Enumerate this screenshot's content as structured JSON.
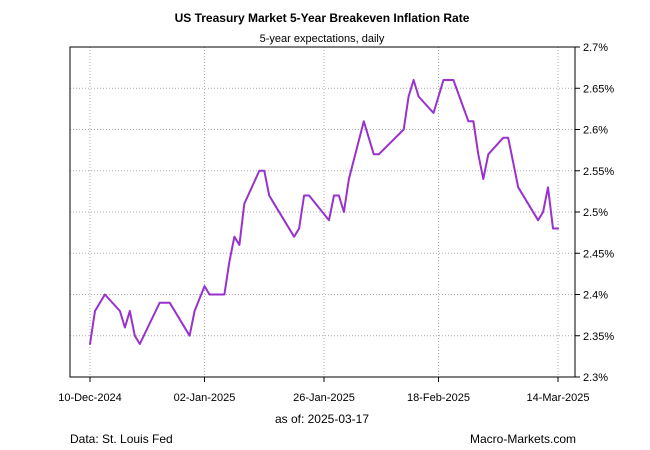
{
  "chart_data": {
    "type": "line",
    "title": "US Treasury Market 5-Year Breakeven Inflation Rate",
    "subtitle": "5-year expectations, daily",
    "xlabel": "",
    "ylabel": "",
    "ylim": [
      2.3,
      2.7
    ],
    "yticks": [
      2.3,
      2.35,
      2.4,
      2.45,
      2.5,
      2.55,
      2.6,
      2.65,
      2.7
    ],
    "ytick_labels": [
      "2.3%",
      "2.35%",
      "2.4%",
      "2.45%",
      "2.5%",
      "2.55%",
      "2.6%",
      "2.65%",
      "2.7%"
    ],
    "y_axis_side": "right",
    "grid": true,
    "x_day_range": [
      0,
      94
    ],
    "xticks": [
      {
        "day": 0,
        "label": "10-Dec-2024"
      },
      {
        "day": 23,
        "label": "02-Jan-2025"
      },
      {
        "day": 47,
        "label": "26-Jan-2025"
      },
      {
        "day": 70,
        "label": "18-Feb-2025"
      },
      {
        "day": 94,
        "label": "14-Mar-2025"
      }
    ],
    "series": [
      {
        "name": "5-Year Breakeven Inflation Rate",
        "color": "#9932CC",
        "x": [
          0,
          1,
          3,
          6,
          7,
          8,
          9,
          10,
          14,
          16,
          20,
          21,
          23,
          24,
          27,
          28,
          29,
          30,
          31,
          34,
          35,
          36,
          37,
          41,
          42,
          43,
          44,
          48,
          49,
          50,
          51,
          52,
          55,
          56,
          57,
          58,
          63,
          64,
          65,
          66,
          69,
          70,
          71,
          73,
          76,
          77,
          78,
          79,
          80,
          83,
          84,
          86,
          90,
          91,
          92,
          93,
          94
        ],
        "values": [
          2.34,
          2.38,
          2.4,
          2.38,
          2.36,
          2.38,
          2.35,
          2.34,
          2.39,
          2.39,
          2.35,
          2.38,
          2.41,
          2.4,
          2.4,
          2.44,
          2.47,
          2.46,
          2.51,
          2.55,
          2.55,
          2.52,
          2.51,
          2.47,
          2.48,
          2.52,
          2.52,
          2.49,
          2.52,
          2.52,
          2.5,
          2.54,
          2.61,
          2.59,
          2.57,
          2.57,
          2.6,
          2.64,
          2.66,
          2.64,
          2.62,
          2.64,
          2.66,
          2.66,
          2.61,
          2.61,
          2.57,
          2.54,
          2.57,
          2.59,
          2.59,
          2.53,
          2.49,
          2.5,
          2.53,
          2.48,
          2.48
        ]
      }
    ]
  },
  "footer": {
    "as_of": "as of:  2025-03-17",
    "source": "Data: St. Louis Fed",
    "brand": "Macro-Markets.com"
  }
}
